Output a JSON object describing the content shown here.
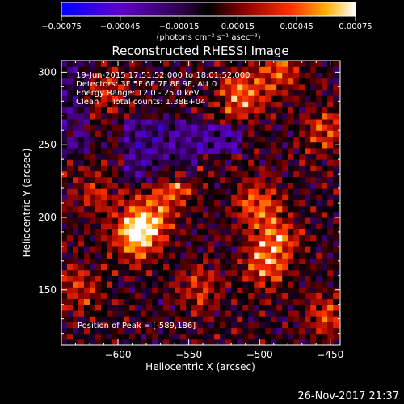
{
  "chart_data": {
    "type": "heatmap",
    "title": "Reconstructed RHESSI Image",
    "xlabel": "Heliocentric X (arcsec)",
    "ylabel": "Heliocentric Y (arcsec)",
    "xlim": [
      -640,
      -443
    ],
    "ylim": [
      112,
      308
    ],
    "xticks": [
      -600,
      -550,
      -500,
      -450
    ],
    "xtick_labels": [
      "−600",
      "−550",
      "−500",
      "−450"
    ],
    "yticks": [
      150,
      200,
      250,
      300
    ],
    "ytick_labels": [
      "150",
      "200",
      "250",
      "300"
    ],
    "colorbar": {
      "range": [
        -0.00075,
        0.00075
      ],
      "ticks": [
        -0.00075,
        -0.00045,
        -0.00015,
        0.00015,
        0.00045,
        0.00075
      ],
      "tick_labels": [
        "−0.00075",
        "−0.00045",
        "−0.00015",
        "0.00015",
        "0.00045",
        "0.00075"
      ],
      "units": "(photons cm⁻² s⁻¹ asec⁻²)",
      "colormap": [
        "#0000ff",
        "#5a00cc",
        "#3a0060",
        "#000000",
        "#8a0000",
        "#ff3000",
        "#ffb000",
        "#ffffff"
      ]
    },
    "peak": {
      "x": -589,
      "y": 186
    },
    "bright_sources": [
      {
        "x": -589,
        "y": 186,
        "intensity": 1.0
      },
      {
        "x": -578,
        "y": 199,
        "intensity": 0.55
      },
      {
        "x": -562,
        "y": 222,
        "intensity": 0.55
      },
      {
        "x": -515,
        "y": 282,
        "intensity": 0.65
      },
      {
        "x": -490,
        "y": 298,
        "intensity": 0.5
      },
      {
        "x": -455,
        "y": 258,
        "intensity": 0.5
      },
      {
        "x": -505,
        "y": 208,
        "intensity": 0.6
      },
      {
        "x": -490,
        "y": 185,
        "intensity": 0.55
      },
      {
        "x": -498,
        "y": 165,
        "intensity": 0.6
      },
      {
        "x": -630,
        "y": 150,
        "intensity": 0.45
      },
      {
        "x": -545,
        "y": 150,
        "intensity": 0.45
      },
      {
        "x": -618,
        "y": 215,
        "intensity": 0.4
      },
      {
        "x": -455,
        "y": 130,
        "intensity": 0.45
      },
      {
        "x": -612,
        "y": 285,
        "intensity": 0.35
      }
    ]
  },
  "annotations": {
    "time_range": "19-Jun-2015 17:51:52.000 to 18:01:52.000",
    "detectors": "Detectors: 3F 5F 6F 7F 8F 9F, Att 0",
    "energy": "Energy Range: 12.0 - 25.0 keV",
    "method": "Clean     Total counts: 1.38E+04",
    "peak_text": "Position of Peak = [-589,186]"
  },
  "timestamp": "26-Nov-2017 21:37"
}
